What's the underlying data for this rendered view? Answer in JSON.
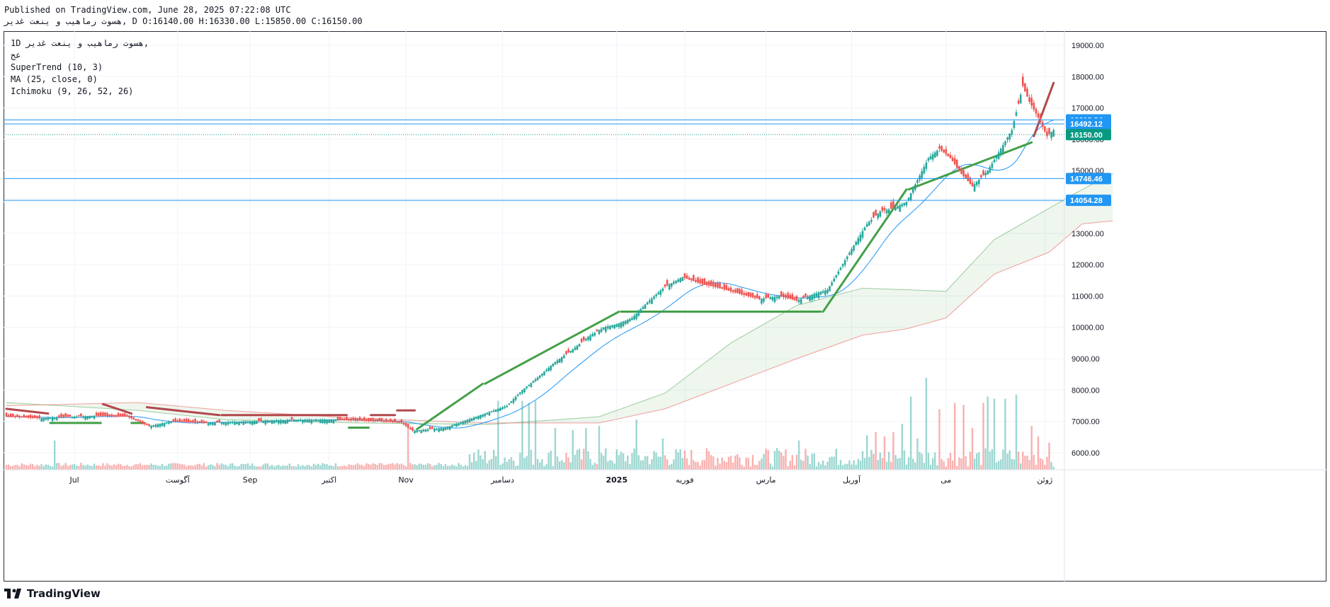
{
  "header": {
    "published": "Published on TradingView.com, June 28, 2025 07:22:08 UTC",
    "symbol_line": "هسوت رماهیب و ینعت غدیر, D O:16140.00 H:16330.00 L:15850.00 C:16150.00"
  },
  "legend": {
    "timeframe": "1D",
    "symbol": "هسوت رماهیب و ینعت غدیر,",
    "exchange": "عج",
    "indicator_1": "SuperTrend (10, 3)",
    "indicator_2": "MA (25, close, 0)",
    "indicator_3": "Ichimoku (9, 26, 52, 26)"
  },
  "footer": {
    "brand": "TradingView"
  },
  "colors": {
    "up": "#26a69a",
    "down": "#ef5350",
    "supertrend_up": "#43a047",
    "supertrend_down": "#b2474b",
    "ma": "#2196f3",
    "cloud_bull": "#43a047",
    "cloud_bear": "#ef5350",
    "hline": "#2196f3",
    "last_price": "#089981"
  },
  "chart_data": {
    "type": "candlestick",
    "y_ticks": [
      "19000.00",
      "18000.00",
      "17000.00",
      "16000.00",
      "15000.00",
      "14000.00",
      "13000.00",
      "12000.00",
      "11000.00",
      "10000.00",
      "9000.00",
      "8000.00",
      "7000.00",
      "6000.00"
    ],
    "x_labels": [
      {
        "day": 31,
        "label": "Jul"
      },
      {
        "day": 78,
        "label": "آگوست"
      },
      {
        "day": 111,
        "label": "Sep"
      },
      {
        "day": 147,
        "label": "اکتبر"
      },
      {
        "day": 182,
        "label": "Nov"
      },
      {
        "day": 226,
        "label": "دسامبر"
      },
      {
        "day": 278,
        "label": "2025"
      },
      {
        "day": 309,
        "label": "فوریه"
      },
      {
        "day": 346,
        "label": "مارس"
      },
      {
        "day": 385,
        "label": "آوریل"
      },
      {
        "day": 428,
        "label": "می"
      },
      {
        "day": 473,
        "label": "ژوئن"
      }
    ],
    "price_lines": [
      {
        "value": 16618.34,
        "label": "16618.34"
      },
      {
        "value": 16492.12,
        "label": "16492.12"
      },
      {
        "value": 14746.46,
        "label": "14746.46"
      },
      {
        "value": 14054.28,
        "label": "14054.28"
      }
    ],
    "last_price": {
      "value": 16150,
      "label": "16150.00"
    },
    "ylim": [
      5400,
      19700
    ],
    "close_anchors": [
      [
        0,
        7150
      ],
      [
        15,
        7100
      ],
      [
        30,
        7150
      ],
      [
        40,
        7180
      ],
      [
        55,
        7150
      ],
      [
        65,
        6850
      ],
      [
        75,
        7000
      ],
      [
        90,
        6950
      ],
      [
        110,
        7000
      ],
      [
        130,
        7050
      ],
      [
        150,
        7050
      ],
      [
        170,
        7000
      ],
      [
        180,
        6950
      ],
      [
        185,
        6700
      ],
      [
        200,
        6800
      ],
      [
        210,
        7050
      ],
      [
        220,
        7300
      ],
      [
        228,
        7500
      ],
      [
        235,
        8000
      ],
      [
        242,
        8400
      ],
      [
        250,
        8900
      ],
      [
        258,
        9300
      ],
      [
        265,
        9700
      ],
      [
        272,
        10000
      ],
      [
        278,
        10100
      ],
      [
        285,
        10300
      ],
      [
        292,
        10800
      ],
      [
        300,
        11300
      ],
      [
        308,
        11600
      ],
      [
        316,
        11400
      ],
      [
        325,
        11250
      ],
      [
        335,
        11050
      ],
      [
        343,
        10900
      ],
      [
        352,
        11000
      ],
      [
        360,
        10850
      ],
      [
        367,
        11050
      ],
      [
        374,
        11200
      ],
      [
        380,
        11900
      ],
      [
        385,
        12500
      ],
      [
        392,
        13300
      ],
      [
        398,
        13700
      ],
      [
        404,
        13800
      ],
      [
        410,
        14000
      ],
      [
        415,
        14700
      ],
      [
        420,
        15400
      ],
      [
        425,
        15700
      ],
      [
        430,
        15400
      ],
      [
        435,
        14900
      ],
      [
        440,
        14500
      ],
      [
        447,
        15000
      ],
      [
        453,
        15700
      ],
      [
        458,
        16300
      ],
      [
        463,
        17700
      ],
      [
        466,
        17200
      ],
      [
        470,
        16700
      ],
      [
        474,
        16100
      ],
      [
        477,
        16300
      ]
    ],
    "down_days": [
      6,
      7,
      8,
      9,
      24,
      25,
      26,
      27,
      28,
      29,
      33,
      34,
      43,
      44,
      60,
      61,
      62,
      80,
      82,
      90,
      91,
      96,
      97,
      115,
      116,
      130,
      160,
      161,
      162,
      178,
      179,
      180,
      181,
      182,
      183,
      184,
      193,
      194,
      255,
      256,
      262,
      263,
      269,
      300,
      301,
      320,
      321,
      328,
      329,
      333,
      334,
      346,
      347,
      363,
      364,
      395,
      396,
      399,
      400,
      403,
      404,
      425,
      426,
      427,
      428,
      429,
      430,
      431,
      432,
      433,
      434,
      435,
      436,
      437,
      444,
      445,
      461,
      463,
      464,
      465,
      466,
      467,
      468,
      469,
      470,
      471,
      472,
      473,
      474,
      475
    ],
    "up_days": [
      476,
      477
    ],
    "volume_spikes": [
      [
        22,
        1400
      ],
      [
        183,
        2100
      ],
      [
        224,
        3300
      ],
      [
        235,
        3300
      ],
      [
        238,
        3200
      ],
      [
        241,
        3300
      ],
      [
        250,
        2000
      ],
      [
        258,
        1900
      ],
      [
        264,
        2000
      ],
      [
        270,
        2100
      ],
      [
        287,
        2400
      ],
      [
        299,
        1500
      ],
      [
        361,
        1400
      ],
      [
        392,
        1650
      ],
      [
        396,
        1800
      ],
      [
        400,
        1600
      ],
      [
        404,
        1800
      ],
      [
        408,
        2200
      ],
      [
        412,
        3500
      ],
      [
        415,
        1500
      ],
      [
        419,
        4400
      ],
      [
        425,
        2900
      ],
      [
        432,
        3200
      ],
      [
        436,
        3100
      ],
      [
        440,
        2000
      ],
      [
        445,
        3200
      ],
      [
        447,
        3500
      ],
      [
        450,
        3400
      ],
      [
        455,
        3400
      ],
      [
        460,
        3600
      ],
      [
        467,
        2100
      ],
      [
        470,
        1600
      ],
      [
        475,
        1300
      ],
      [
        478,
        1200
      ]
    ],
    "supertrend": [
      {
        "start": 0,
        "end": 19,
        "trend": "down",
        "start_value": 7400,
        "end_value": 7250
      },
      {
        "start": 20,
        "end": 43,
        "trend": "up",
        "start_value": 6950,
        "end_value": 6950
      },
      {
        "start": 44,
        "end": 57,
        "trend": "down",
        "start_value": 7550,
        "end_value": 7250
      },
      {
        "start": 57,
        "end": 63,
        "trend": "up",
        "start_value": 6950,
        "end_value": 6950
      },
      {
        "start": 64,
        "end": 97,
        "trend": "down",
        "start_value": 7450,
        "end_value": 7200
      },
      {
        "start": 98,
        "end": 155,
        "trend": "down",
        "start_value": 7200,
        "end_value": 7200
      },
      {
        "start": 156,
        "end": 165,
        "trend": "up",
        "start_value": 6800,
        "end_value": 6800
      },
      {
        "start": 166,
        "end": 177,
        "trend": "down",
        "start_value": 7200,
        "end_value": 7200
      },
      {
        "start": 178,
        "end": 186,
        "trend": "down",
        "start_value": 7350,
        "end_value": 7350
      },
      {
        "start": 187,
        "end": 217,
        "trend": "up",
        "start_value": 6750,
        "end_value": 8200
      },
      {
        "start": 218,
        "end": 279,
        "trend": "up",
        "start_value": 8200,
        "end_value": 10500
      },
      {
        "start": 280,
        "end": 371,
        "trend": "up",
        "start_value": 10500,
        "end_value": 10500
      },
      {
        "start": 372,
        "end": 410,
        "trend": "up",
        "start_value": 10500,
        "end_value": 14400
      },
      {
        "start": 411,
        "end": 467,
        "trend": "up",
        "start_value": 14400,
        "end_value": 15900
      },
      {
        "start": 468,
        "end": 477,
        "trend": "down",
        "start_value": 16100,
        "end_value": 17800
      }
    ],
    "ichimoku_cloud": [
      {
        "day": 0,
        "a": 7600,
        "b": 7500
      },
      {
        "day": 60,
        "a": 7350,
        "b": 7600
      },
      {
        "day": 100,
        "a": 7050,
        "b": 7350
      },
      {
        "day": 160,
        "a": 6950,
        "b": 7100
      },
      {
        "day": 220,
        "a": 6900,
        "b": 6950
      },
      {
        "day": 270,
        "a": 7150,
        "b": 6950
      },
      {
        "day": 300,
        "a": 7900,
        "b": 7400
      },
      {
        "day": 330,
        "a": 9500,
        "b": 8200
      },
      {
        "day": 360,
        "a": 10700,
        "b": 9000
      },
      {
        "day": 390,
        "a": 11250,
        "b": 9750
      },
      {
        "day": 410,
        "a": 11200,
        "b": 9950
      },
      {
        "day": 428,
        "a": 11150,
        "b": 10300
      },
      {
        "day": 450,
        "a": 12800,
        "b": 11700
      },
      {
        "day": 475,
        "a": 13800,
        "b": 12400
      },
      {
        "day": 490,
        "a": 14400,
        "b": 13300
      },
      {
        "day": 504,
        "a": 14900,
        "b": 13400
      }
    ]
  }
}
